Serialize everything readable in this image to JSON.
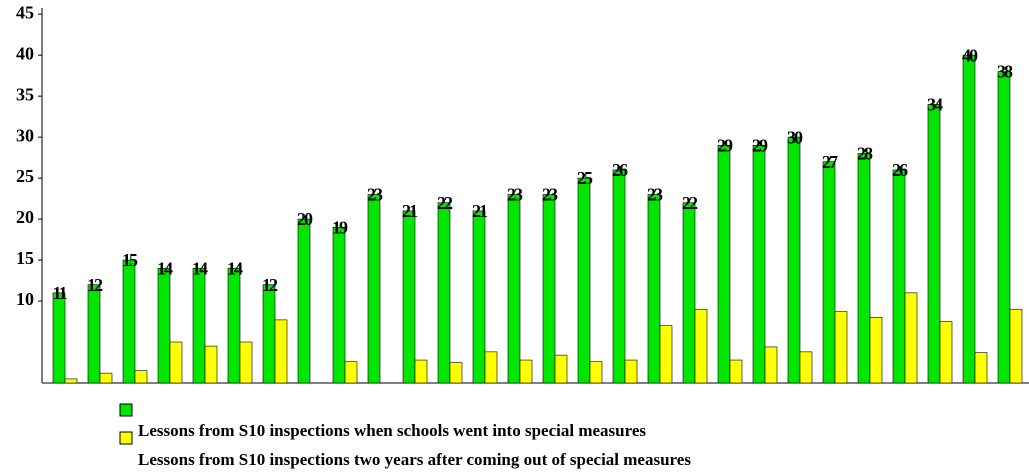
{
  "chart_data": {
    "type": "bar",
    "series": [
      {
        "name": "Lessons from S10 inspections when schools went into special measures",
        "color": "#00e600",
        "values": [
          11,
          12,
          15,
          14,
          14,
          14,
          12,
          20,
          19,
          23,
          21,
          22,
          21,
          23,
          23,
          25,
          26,
          23,
          22,
          29,
          29,
          30,
          27,
          28,
          26,
          34,
          40,
          38
        ]
      },
      {
        "name": "Lessons from S10 inspections two years after coming out of special measures",
        "color": "#ffff00",
        "values": [
          0.5,
          1.2,
          1.5,
          5,
          4.5,
          5,
          7.7,
          null,
          2.6,
          null,
          2.8,
          2.5,
          3.8,
          2.8,
          3.4,
          2.6,
          2.8,
          7,
          9,
          2.8,
          4.4,
          3.8,
          8.7,
          8,
          11,
          7.5,
          3.7,
          9
        ]
      }
    ],
    "categories": [
      null,
      null,
      null,
      null,
      null,
      null,
      null,
      null,
      null,
      null,
      null,
      null,
      null,
      null,
      null,
      null,
      null,
      null,
      null,
      null,
      null,
      null,
      null,
      null,
      null,
      null,
      null,
      null
    ],
    "ylim": [
      0,
      46
    ],
    "yticks": [
      10,
      15,
      20,
      25,
      30,
      35,
      40,
      45
    ]
  }
}
